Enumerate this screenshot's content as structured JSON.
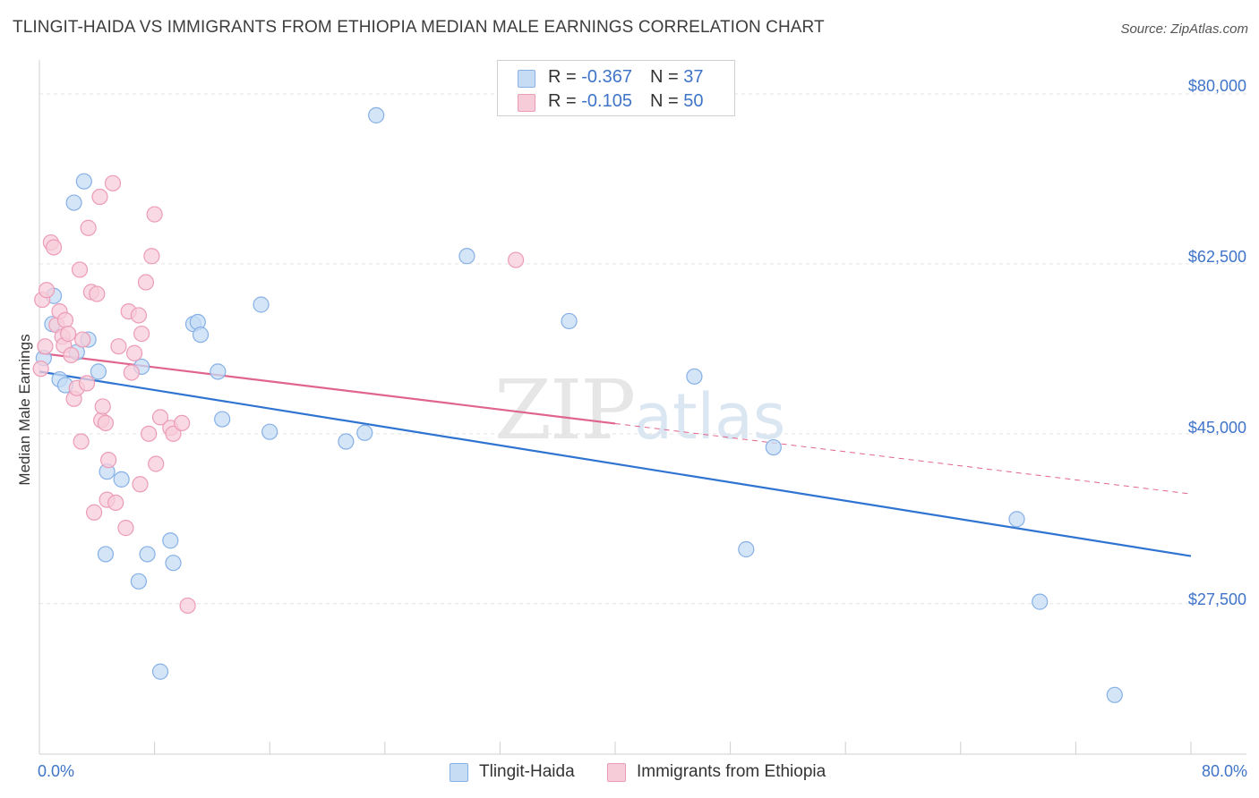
{
  "title": "TLINGIT-HAIDA VS IMMIGRANTS FROM ETHIOPIA MEDIAN MALE EARNINGS CORRELATION CHART",
  "source": "Source: ZipAtlas.com",
  "watermark": {
    "zip": "ZIP",
    "atlas": "atlas"
  },
  "colors": {
    "blue_fill": "#c6dcf5",
    "blue_stroke": "#86b0e6",
    "blue_line": "#2f74d0",
    "pink_fill": "#f7ccd9",
    "pink_stroke": "#ec9cb7",
    "pink_line": "#e0658d",
    "accent_text": "#3f74c8",
    "grid": "#e3e3e3"
  },
  "legend": {
    "rows": [
      {
        "r_label": "R = ",
        "r_value": "-0.367",
        "n_label": "N = ",
        "n_value": "37"
      },
      {
        "r_label": "R = ",
        "r_value": "-0.105",
        "n_label": "N = ",
        "n_value": "50"
      }
    ]
  },
  "bottom_legend": [
    "Tlingit-Haida",
    "Immigrants from Ethiopia"
  ],
  "chart_data": {
    "type": "scatter",
    "title": "TLINGIT-HAIDA VS IMMIGRANTS FROM ETHIOPIA MEDIAN MALE EARNINGS CORRELATION CHART",
    "xlabel": "",
    "ylabel": "Median Male Earnings",
    "xlim": [
      0,
      80
    ],
    "ylim": [
      12000,
      83500
    ],
    "x_tick_labels": [
      {
        "value": 0,
        "label": "0.0%"
      },
      {
        "value": 80,
        "label": "80.0%"
      }
    ],
    "y_tick_labels": [
      {
        "value": 80000,
        "label": "$80,000"
      },
      {
        "value": 62500,
        "label": "$62,500"
      },
      {
        "value": 45000,
        "label": "$45,000"
      },
      {
        "value": 27500,
        "label": "$27,500"
      }
    ],
    "series": [
      {
        "name": "Tlingit-Haida",
        "r": -0.367,
        "n": 37,
        "trend": {
          "x0": 0,
          "y0": 51400,
          "x1": 80,
          "y1": 32400,
          "dashed_from": null
        },
        "points": [
          [
            0.3,
            52800
          ],
          [
            0.9,
            56300
          ],
          [
            1.0,
            59200
          ],
          [
            1.4,
            50600
          ],
          [
            1.8,
            50000
          ],
          [
            2.4,
            68800
          ],
          [
            2.6,
            53400
          ],
          [
            3.1,
            71000
          ],
          [
            3.4,
            54700
          ],
          [
            4.1,
            51400
          ],
          [
            4.6,
            32600
          ],
          [
            4.7,
            41100
          ],
          [
            5.7,
            40300
          ],
          [
            6.9,
            29800
          ],
          [
            7.1,
            51900
          ],
          [
            7.5,
            32600
          ],
          [
            8.4,
            20500
          ],
          [
            9.1,
            34000
          ],
          [
            9.3,
            31700
          ],
          [
            10.7,
            56300
          ],
          [
            11.0,
            56500
          ],
          [
            11.2,
            55200
          ],
          [
            12.4,
            51400
          ],
          [
            12.7,
            46500
          ],
          [
            15.4,
            58300
          ],
          [
            16.0,
            45200
          ],
          [
            21.3,
            44200
          ],
          [
            22.6,
            45100
          ],
          [
            23.4,
            77800
          ],
          [
            29.7,
            63300
          ],
          [
            36.8,
            56600
          ],
          [
            45.5,
            50900
          ],
          [
            49.1,
            33100
          ],
          [
            51.0,
            43600
          ],
          [
            67.9,
            36200
          ],
          [
            69.5,
            27700
          ],
          [
            74.7,
            18100
          ]
        ]
      },
      {
        "name": "Immigrants from Ethiopia",
        "r": -0.105,
        "n": 50,
        "trend": {
          "x0": 0,
          "y0": 53300,
          "x1": 80,
          "y1": 38800,
          "dashed_from": 40
        },
        "points": [
          [
            0.1,
            51700
          ],
          [
            0.2,
            58800
          ],
          [
            0.4,
            54000
          ],
          [
            0.5,
            59800
          ],
          [
            0.8,
            64700
          ],
          [
            1.0,
            64200
          ],
          [
            1.2,
            56200
          ],
          [
            1.4,
            57600
          ],
          [
            1.6,
            55000
          ],
          [
            1.7,
            54100
          ],
          [
            1.8,
            56700
          ],
          [
            2.0,
            55300
          ],
          [
            2.2,
            53100
          ],
          [
            2.4,
            48600
          ],
          [
            2.6,
            49700
          ],
          [
            2.8,
            61900
          ],
          [
            2.9,
            44200
          ],
          [
            3.0,
            54700
          ],
          [
            3.3,
            50200
          ],
          [
            3.4,
            66200
          ],
          [
            3.6,
            59600
          ],
          [
            3.8,
            36900
          ],
          [
            4.0,
            59400
          ],
          [
            4.2,
            69400
          ],
          [
            4.3,
            46400
          ],
          [
            4.4,
            47800
          ],
          [
            4.6,
            46100
          ],
          [
            4.7,
            38200
          ],
          [
            4.8,
            42300
          ],
          [
            5.1,
            70800
          ],
          [
            5.3,
            37900
          ],
          [
            5.5,
            54000
          ],
          [
            6.0,
            35300
          ],
          [
            6.2,
            57600
          ],
          [
            6.4,
            51300
          ],
          [
            6.6,
            53300
          ],
          [
            6.9,
            57200
          ],
          [
            7.0,
            39800
          ],
          [
            7.1,
            55300
          ],
          [
            7.4,
            60600
          ],
          [
            7.6,
            45000
          ],
          [
            7.8,
            63300
          ],
          [
            8.0,
            67600
          ],
          [
            8.1,
            41900
          ],
          [
            8.4,
            46700
          ],
          [
            9.1,
            45600
          ],
          [
            9.3,
            45000
          ],
          [
            9.9,
            46100
          ],
          [
            10.3,
            27300
          ],
          [
            33.1,
            62900
          ]
        ]
      }
    ]
  }
}
